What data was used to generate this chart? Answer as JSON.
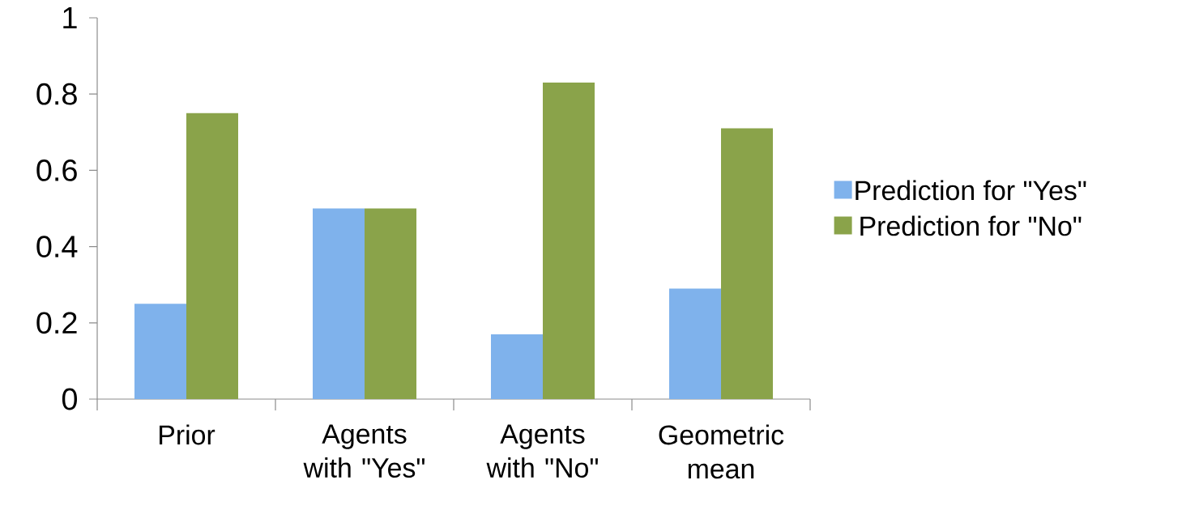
{
  "chart_data": {
    "type": "bar",
    "categories": [
      "Prior",
      "Agents with \"Yes\"",
      "Agents with \"No\"",
      "Geometric mean"
    ],
    "series": [
      {
        "name": "Prediction for \"Yes\"",
        "color": "#7fb2ec",
        "values": [
          0.25,
          0.5,
          0.17,
          0.29
        ]
      },
      {
        "name": "Prediction for \"No\"",
        "color": "#8aa34a",
        "values": [
          0.75,
          0.5,
          0.83,
          0.71
        ]
      }
    ],
    "ylim": [
      0,
      1
    ],
    "yticks": [
      0,
      0.2,
      0.4,
      0.6,
      0.8,
      1
    ],
    "grid": false,
    "legend": "right"
  }
}
